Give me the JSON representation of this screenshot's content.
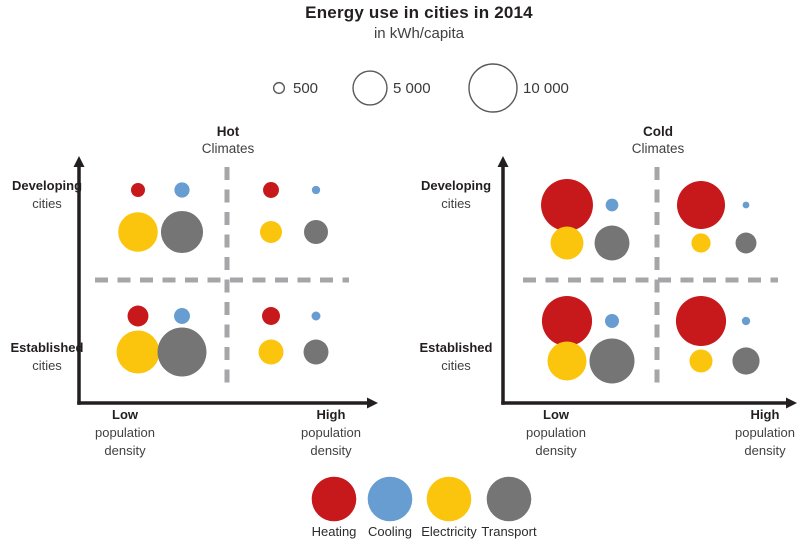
{
  "chart_data": {
    "type": "bubble",
    "title": "Energy use in cities in 2014",
    "unit": "in kWh/capita",
    "axis_color": "#231f20",
    "grid_color": "#a6a6a8",
    "size_legend": [
      {
        "value": 500,
        "label": "500"
      },
      {
        "value": 5000,
        "label": "5 000"
      },
      {
        "value": 10000,
        "label": "10 000"
      }
    ],
    "categories": [
      {
        "label": "Heating",
        "color": "#c7181c"
      },
      {
        "label": "Cooling",
        "color": "#679dd1"
      },
      {
        "label": "Electricity",
        "color": "#fcc50d"
      },
      {
        "label": "Transport",
        "color": "#757575"
      }
    ],
    "panels": [
      {
        "climate": "Hot",
        "climate_label": "Climates",
        "row_labels": [
          {
            "bold": "Developing",
            "rest": "cities"
          },
          {
            "bold": "Established",
            "rest": "cities"
          }
        ],
        "col_labels": [
          {
            "bold": "Low",
            "line2": "population",
            "line3": "density"
          },
          {
            "bold": "High",
            "line2": "population",
            "line3": "density"
          }
        ],
        "quadrants": [
          {
            "row": "Developing cities",
            "col": "Low population density",
            "values": [
              850,
              1000,
              6800,
              7700
            ]
          },
          {
            "row": "Developing cities",
            "col": "High population density",
            "values": [
              1100,
              300,
              2100,
              2500
            ]
          },
          {
            "row": "Established cities",
            "col": "Low population density",
            "values": [
              1900,
              1100,
              8000,
              10400
            ]
          },
          {
            "row": "Established cities",
            "col": "High population density",
            "values": [
              1400,
              350,
              2700,
              2700
            ]
          }
        ]
      },
      {
        "climate": "Cold",
        "climate_label": "Climates",
        "row_labels": [
          {
            "bold": "Developing",
            "rest": "cities"
          },
          {
            "bold": "Established",
            "rest": "cities"
          }
        ],
        "col_labels": [
          {
            "bold": "Low",
            "line2": "population",
            "line3": "density"
          },
          {
            "bold": "High",
            "line2": "population",
            "line3": "density"
          }
        ],
        "quadrants": [
          {
            "row": "Developing cities",
            "col": "Low population density",
            "values": [
              11700,
              700,
              4700,
              5300
            ]
          },
          {
            "row": "Developing cities",
            "col": "High population density",
            "values": [
              10000,
              200,
              1600,
              1900
            ]
          },
          {
            "row": "Established cities",
            "col": "Low population density",
            "values": [
              10900,
              850,
              6600,
              8800
            ]
          },
          {
            "row": "Established cities",
            "col": "High population density",
            "values": [
              10900,
              300,
              2300,
              3200
            ]
          }
        ]
      }
    ]
  }
}
